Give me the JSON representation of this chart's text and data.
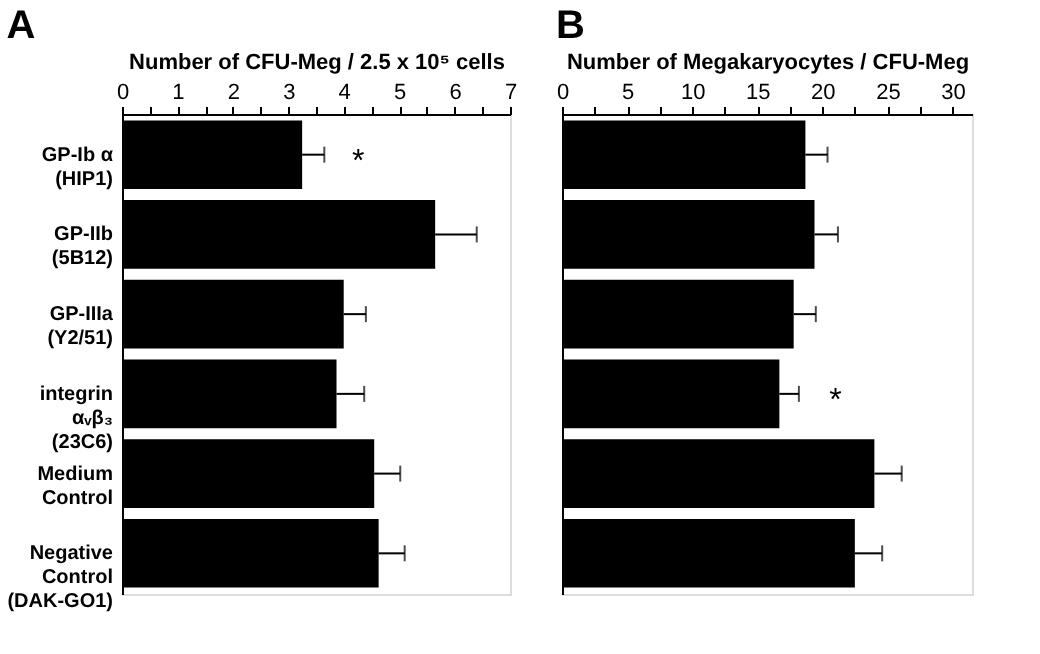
{
  "chart_data": [
    {
      "type": "bar",
      "orientation": "horizontal",
      "title": "A",
      "xlabel": "Number of CFU-Meg / 2.5 x 10⁵ cells",
      "categories": [
        "GP-Ib α\n(HIP1)",
        "GP-IIb\n(5B12)",
        "GP-IIIa\n(Y2/51)",
        "integrin\nαᵥβ₃\n(23C6)",
        "Medium\nControl",
        "Negative\nControl\n(DAK-GO1)"
      ],
      "values": [
        3.25,
        5.65,
        4.0,
        3.87,
        4.55,
        4.63
      ],
      "errors": [
        0.4,
        0.75,
        0.4,
        0.5,
        0.47,
        0.47
      ],
      "color": "#000000",
      "xlim": [
        0,
        7
      ],
      "xticks": [
        0,
        {
          "value": 0.5,
          "label": null
        },
        1,
        {
          "value": 1.5,
          "label": null
        },
        2,
        {
          "value": 2.5,
          "label": null
        },
        3,
        {
          "value": 3.5,
          "label": null
        },
        4,
        {
          "value": 4.5,
          "label": null
        },
        5,
        {
          "value": 5.5,
          "label": null
        },
        6,
        {
          "value": 6.5,
          "label": null
        },
        7
      ],
      "annotations": [
        {
          "text": "*",
          "x": 3.25,
          "y": "GP-Ib α\n(HIP1)"
        }
      ]
    },
    {
      "type": "bar",
      "orientation": "horizontal",
      "title": "B",
      "xlabel": "Number of  Megakaryocytes / CFU-Meg",
      "tick_labels": "x",
      "categories": [
        "GP-Ib α\n(HIP1)",
        "GP-IIb\n(5B12)",
        "GP-IIIa\n(Y2/51)",
        "integrin\nαᵥβ₃\n(23C6)",
        "Medium\nControl",
        "Negative\nControl\n(DAK-GO1)"
      ],
      "values": [
        18.7,
        19.4,
        17.8,
        16.7,
        24.0,
        22.5
      ],
      "errors": [
        1.7,
        1.8,
        1.7,
        1.5,
        2.1,
        2.1
      ],
      "color": "#000000",
      "xlim": [
        0,
        31.5
      ],
      "xticks": [
        0,
        {
          "value": 2.5,
          "label": null
        },
        5,
        {
          "value": 7.5,
          "label": null
        },
        10,
        {
          "value": 12.5,
          "label": null
        },
        15,
        {
          "value": 17.5,
          "label": null
        },
        20,
        {
          "value": 22.5,
          "label": null
        },
        25,
        {
          "value": 27.5,
          "label": null
        },
        30
      ],
      "annotations": [
        {
          "text": "*",
          "x": 16.7,
          "y": "integrin\nαᵥβ₃\n(23C6)"
        }
      ]
    }
  ]
}
